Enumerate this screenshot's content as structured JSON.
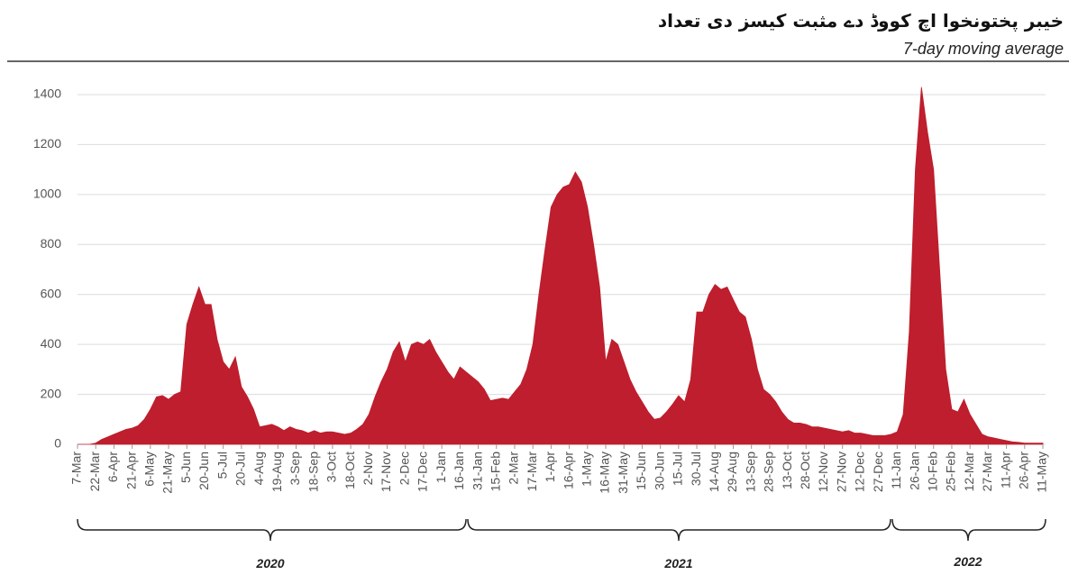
{
  "chart_data": {
    "type": "area",
    "title": "خیبر پختونخوا اچ کووڈ دے مثبت کیسز دی تعداد",
    "subtitle": "7-day moving average",
    "color": "#be1e2d",
    "grid": true,
    "ylim": [
      0,
      1400
    ],
    "yticks": [
      0,
      200,
      400,
      600,
      800,
      1000,
      1200,
      1400
    ],
    "year_labels": [
      "2020",
      "2021",
      "2022"
    ],
    "categories": [
      "7-Mar",
      null,
      null,
      "22-Mar",
      null,
      null,
      "6-Apr",
      null,
      null,
      "21-Apr",
      null,
      null,
      "6-May",
      null,
      null,
      "21-May",
      null,
      null,
      "5-Jun",
      null,
      null,
      "20-Jun",
      null,
      null,
      "5-Jul",
      null,
      null,
      "20-Jul",
      null,
      null,
      "4-Aug",
      null,
      null,
      "19-Aug",
      null,
      null,
      "3-Sep",
      null,
      null,
      "18-Sep",
      null,
      null,
      "3-Oct",
      null,
      null,
      "18-Oct",
      null,
      null,
      "2-Nov",
      null,
      null,
      "17-Nov",
      null,
      null,
      "2-Dec",
      null,
      null,
      "17-Dec",
      null,
      null,
      "1-Jan",
      null,
      null,
      "16-Jan",
      null,
      null,
      "31-Jan",
      null,
      null,
      "15-Feb",
      null,
      null,
      "2-Mar",
      null,
      null,
      "17-Mar",
      null,
      null,
      "1-Apr",
      null,
      null,
      "16-Apr",
      null,
      null,
      "1-May",
      null,
      null,
      "16-May",
      null,
      null,
      "31-May",
      null,
      null,
      "15-Jun",
      null,
      null,
      "30-Jun",
      null,
      null,
      "15-Jul",
      null,
      null,
      "30-Jul",
      null,
      null,
      "14-Aug",
      null,
      null,
      "29-Aug",
      null,
      null,
      "13-Sep",
      null,
      null,
      "28-Sep",
      null,
      null,
      "13-Oct",
      null,
      null,
      "28-Oct",
      null,
      null,
      "12-Nov",
      null,
      null,
      "27-Nov",
      null,
      null,
      "12-Dec",
      null,
      null,
      "27-Dec",
      null,
      null,
      "11-Jan",
      null,
      null,
      "26-Jan",
      null,
      null,
      "10-Feb",
      null,
      null,
      "25-Feb",
      null,
      null,
      "12-Mar",
      null,
      null,
      "27-Mar",
      null,
      null,
      "11-Apr",
      null,
      null,
      "26-Apr",
      null,
      null,
      "11-May"
    ],
    "values": [
      0,
      0,
      0,
      5,
      20,
      30,
      40,
      50,
      60,
      65,
      75,
      100,
      140,
      190,
      195,
      180,
      200,
      210,
      480,
      560,
      630,
      560,
      560,
      420,
      330,
      300,
      350,
      230,
      190,
      140,
      70,
      75,
      80,
      70,
      55,
      70,
      60,
      55,
      45,
      55,
      45,
      50,
      50,
      45,
      40,
      45,
      60,
      80,
      120,
      190,
      250,
      300,
      370,
      410,
      330,
      400,
      410,
      400,
      420,
      370,
      330,
      290,
      260,
      310,
      290,
      270,
      250,
      220,
      175,
      180,
      185,
      180,
      210,
      240,
      300,
      400,
      600,
      780,
      950,
      1000,
      1030,
      1040,
      1090,
      1050,
      950,
      800,
      630,
      330,
      420,
      400,
      330,
      260,
      210,
      170,
      130,
      100,
      105,
      130,
      160,
      195,
      170,
      260,
      530,
      530,
      600,
      640,
      620,
      630,
      580,
      530,
      510,
      420,
      300,
      220,
      200,
      170,
      130,
      100,
      85,
      85,
      80,
      70,
      70,
      65,
      60,
      55,
      50,
      55,
      45,
      45,
      40,
      35,
      35,
      35,
      40,
      50,
      120,
      450,
      1100,
      1430,
      1250,
      1100,
      700,
      300,
      140,
      130,
      180,
      120,
      80,
      40,
      30,
      25,
      20,
      15,
      10,
      8,
      5,
      5,
      5,
      5
    ]
  }
}
